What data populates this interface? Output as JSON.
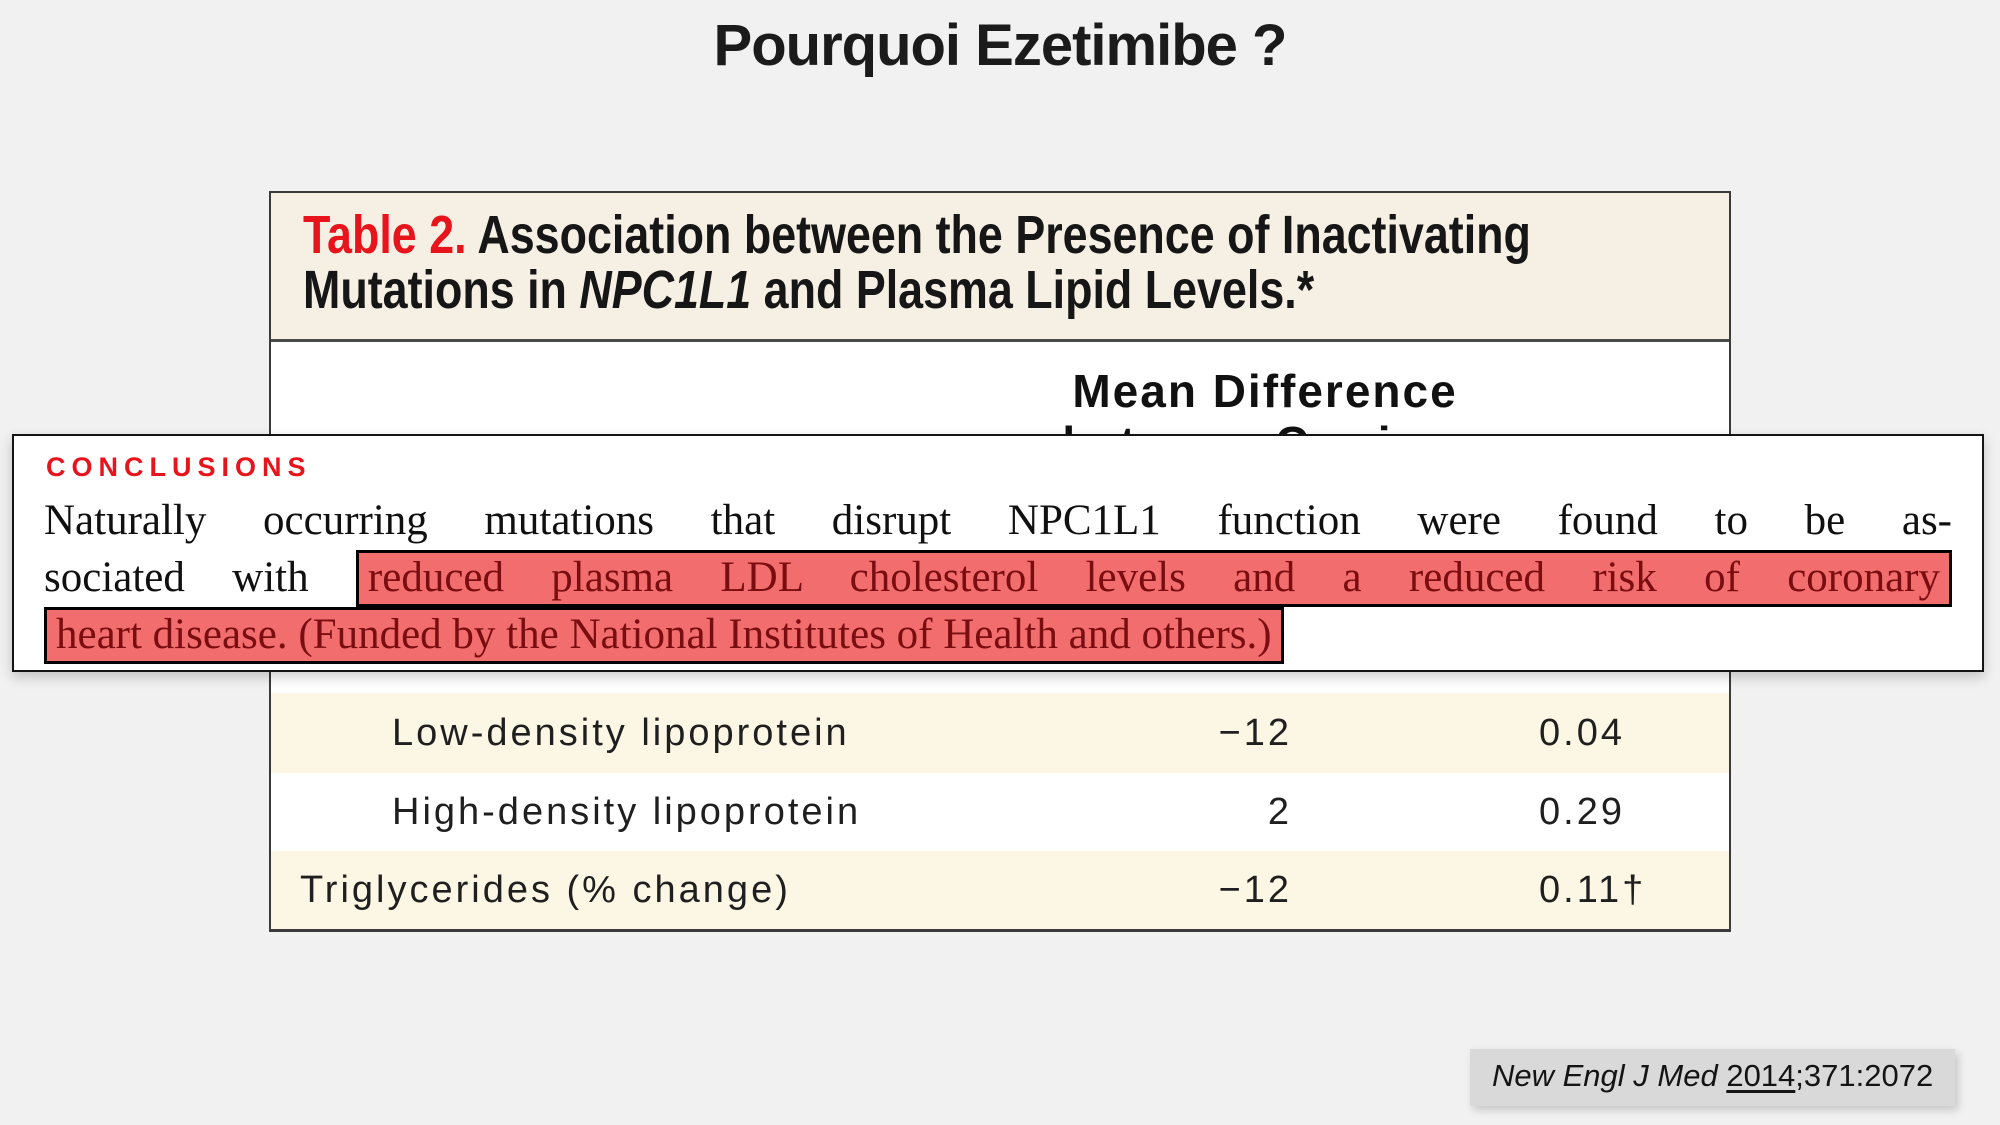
{
  "slide": {
    "title": "Pourquoi Ezetimibe ?",
    "background": "#f1f1f1"
  },
  "nejm_table": {
    "caption": {
      "label": "Table 2.",
      "line1_rest": " Association between the Presence of Inactivating",
      "line2_plain": "Mutations in ",
      "line2_italic": "NPC1L1",
      "line2_end": " and Plasma Lipid Levels.*"
    },
    "column_header": {
      "line1": "Mean Difference",
      "line2": "between Carriers"
    },
    "rows": [
      {
        "label": "Low-density lipoprotein",
        "mean_difference": "−12",
        "p_value": "0.04"
      },
      {
        "label": "High-density lipoprotein",
        "mean_difference": "2",
        "p_value": "0.29"
      },
      {
        "label": "Triglycerides (% change)",
        "mean_difference": "−12",
        "p_value": "0.11†"
      }
    ]
  },
  "conclusions": {
    "heading": "CONCLUSIONS",
    "line1": "Naturally occurring mutations that disrupt NPC1L1 function were found to be as-",
    "line2_plain": "sociated with ",
    "line2_highlighted": "reduced plasma LDL cholesterol levels and a reduced risk of coronary",
    "line3_highlighted": "heart disease. (Funded by the National Institutes of Health and others.)"
  },
  "citation": {
    "journal": "New Engl J Med ",
    "year": "2014",
    "suffix": ";371:2072"
  },
  "colors": {
    "accent_red": "#e8141c",
    "highlight_bg": "#f26d6d",
    "highlight_text": "#7a0d10",
    "table_header_bg": "#f6f0e4",
    "row_stripe_bg": "#fcf7e4",
    "citation_bg": "#d9d9d9"
  }
}
